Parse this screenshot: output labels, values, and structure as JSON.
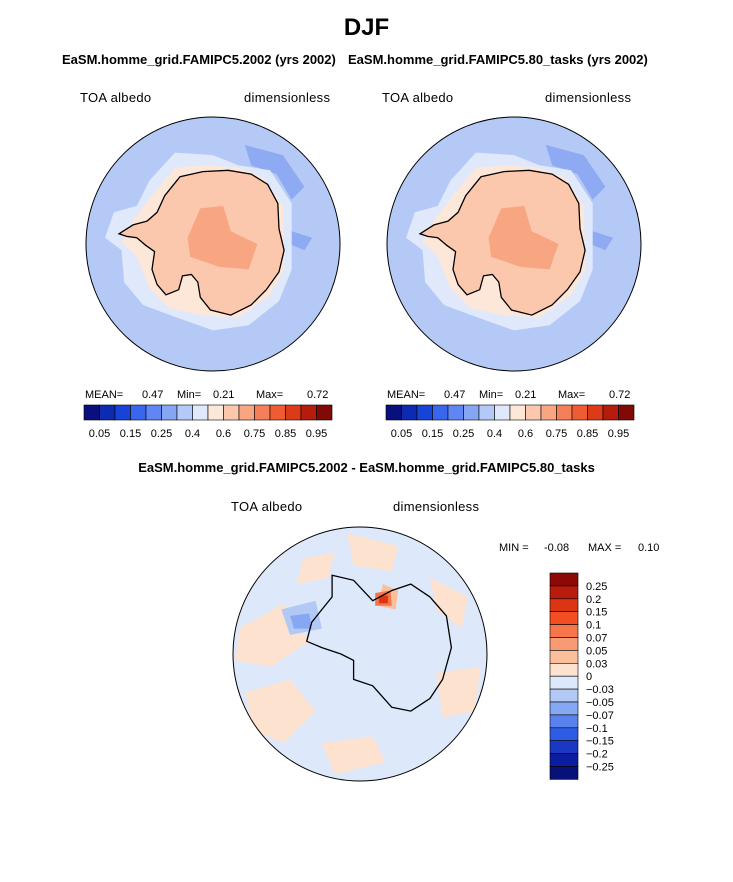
{
  "title": "DJF",
  "panels": [
    {
      "title": "EaSM.homme_grid.FAMIPC5.2002 (yrs 2002)",
      "variable": "TOA albedo",
      "units": "dimensionless",
      "mean_label": "MEAN=",
      "mean": "0.47",
      "min_label": "Min=",
      "min": "0.21",
      "max_label": "Max=",
      "max": "0.72"
    },
    {
      "title": "EaSM.homme_grid.FAMIPC5.80_tasks (yrs 2002)",
      "variable": "TOA albedo",
      "units": "dimensionless",
      "mean_label": "MEAN=",
      "mean": "0.47",
      "min_label": "Min=",
      "min": "0.21",
      "max_label": "Max=",
      "max": "0.72"
    },
    {
      "title": "EaSM.homme_grid.FAMIPC5.2002 - EaSM.homme_grid.FAMIPC5.80_tasks",
      "variable": "TOA albedo",
      "units": "dimensionless",
      "min_label": "MIN =",
      "min": "-0.08",
      "max_label": "MAX =",
      "max": "0.10"
    }
  ],
  "chart_data": [
    {
      "type": "heatmap",
      "projection": "south polar stereographic",
      "title": "EaSM.homme_grid.FAMIPC5.2002 (yrs 2002)",
      "variable": "TOA albedo",
      "units": "dimensionless",
      "mean": 0.47,
      "min": 0.21,
      "max": 0.72,
      "colorbar": {
        "ticks": [
          "0.05",
          "0.15",
          "0.25",
          "0.4",
          "0.6",
          "0.75",
          "0.85",
          "0.95"
        ],
        "colors": [
          "#0a0f7e",
          "#0d2bb0",
          "#1744d6",
          "#3a66ee",
          "#5f86f2",
          "#86a6f4",
          "#b4c9f7",
          "#dfe9fb",
          "#fde7d9",
          "#fbc8ad",
          "#f8a582",
          "#f57f58",
          "#ef5b33",
          "#dc3a19",
          "#b51c0c",
          "#7f0a06"
        ]
      }
    },
    {
      "type": "heatmap",
      "projection": "south polar stereographic",
      "title": "EaSM.homme_grid.FAMIPC5.80_tasks (yrs 2002)",
      "variable": "TOA albedo",
      "units": "dimensionless",
      "mean": 0.47,
      "min": 0.21,
      "max": 0.72,
      "colorbar": {
        "ticks": [
          "0.05",
          "0.15",
          "0.25",
          "0.4",
          "0.6",
          "0.75",
          "0.85",
          "0.95"
        ],
        "colors": [
          "#0a0f7e",
          "#0d2bb0",
          "#1744d6",
          "#3a66ee",
          "#5f86f2",
          "#86a6f4",
          "#b4c9f7",
          "#dfe9fb",
          "#fde7d9",
          "#fbc8ad",
          "#f8a582",
          "#f57f58",
          "#ef5b33",
          "#dc3a19",
          "#b51c0c",
          "#7f0a06"
        ]
      }
    },
    {
      "type": "heatmap",
      "projection": "south polar stereographic",
      "title": "EaSM.homme_grid.FAMIPC5.2002 - EaSM.homme_grid.FAMIPC5.80_tasks",
      "variable": "TOA albedo",
      "units": "dimensionless",
      "min": -0.08,
      "max": 0.1,
      "colorbar": {
        "orientation": "vertical",
        "ticks": [
          "0.25",
          "0.2",
          "0.15",
          "0.1",
          "0.07",
          "0.05",
          "0.03",
          "0",
          "−0.03",
          "−0.05",
          "−0.07",
          "−0.1",
          "−0.15",
          "−0.2",
          "−0.25"
        ],
        "colors": [
          "#8b0a06",
          "#b81c0d",
          "#dc3514",
          "#f24e22",
          "#f6764b",
          "#f89a74",
          "#fbbf9c",
          "#fde2cf",
          "#dde8fa",
          "#b3c9f5",
          "#86a7f2",
          "#5a82ee",
          "#2f5ce4",
          "#1a38c4",
          "#0c1ea0",
          "#08107a"
        ]
      }
    }
  ]
}
